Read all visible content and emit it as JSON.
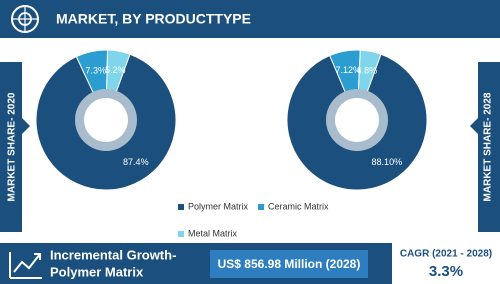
{
  "header": {
    "title": "MARKET, BY PRODUCTTYPE"
  },
  "chart_data": [
    {
      "type": "pie",
      "title": "MARKET SHARE- 2020",
      "categories": [
        "Polymer Matrix",
        "Ceramic Matrix",
        "Metal Matrix"
      ],
      "colors": [
        "#1b4f7e",
        "#2b9dd1",
        "#7fd5ea"
      ],
      "values": [
        87.4,
        7.3,
        5.2
      ],
      "value_labels": [
        "87.4%",
        "7.3%",
        "5.2%"
      ]
    },
    {
      "type": "pie",
      "title": "MARKET SHARE- 2028",
      "categories": [
        "Polymer Matrix",
        "Ceramic Matrix",
        "Metal Matrix"
      ],
      "colors": [
        "#1b4f7e",
        "#2b9dd1",
        "#7fd5ea"
      ],
      "values": [
        88.1,
        7.12,
        4.8
      ],
      "value_labels": [
        "88.10%",
        "7.12%",
        "4.8%"
      ]
    }
  ],
  "footer": {
    "label_lines": [
      "Incremental Growth-",
      "Polymer Matrix"
    ],
    "value": "US$ 856.98 Million (2028)",
    "cagr_label": "CAGR (2021 - 2028)",
    "cagr_value": "3.3%"
  }
}
